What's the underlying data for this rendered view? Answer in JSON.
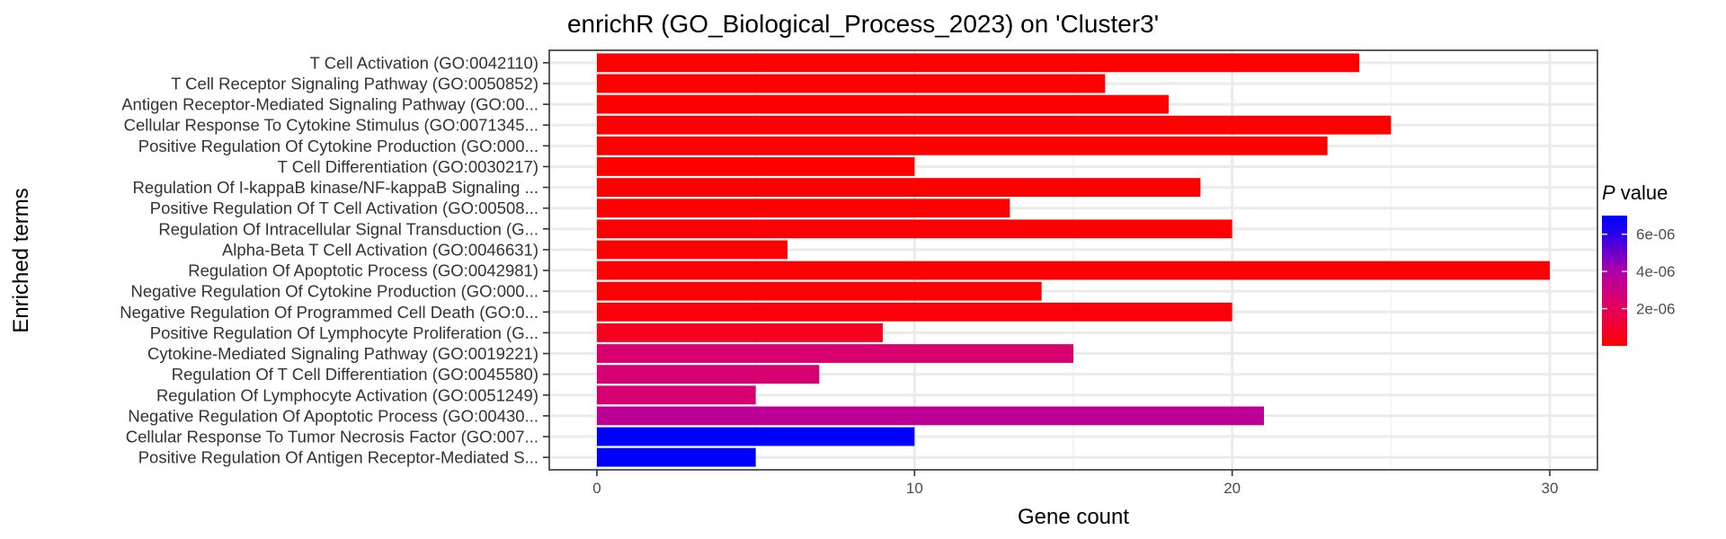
{
  "chart_data": {
    "type": "bar",
    "orientation": "horizontal",
    "title": "enrichR (GO_Biological_Process_2023) on 'Cluster3'",
    "xlabel": "Gene count",
    "ylabel": "Enriched terms",
    "xlim": [
      -1.5,
      31.5
    ],
    "xticks": [
      0,
      10,
      20,
      30
    ],
    "grid": true,
    "categories": [
      "T Cell Activation (GO:0042110)",
      "T Cell Receptor Signaling Pathway (GO:0050852)",
      "Antigen Receptor-Mediated Signaling Pathway (GO:00...",
      "Cellular Response To Cytokine Stimulus (GO:0071345...",
      "Positive Regulation Of Cytokine Production (GO:000...",
      "T Cell Differentiation (GO:0030217)",
      "Regulation Of I-kappaB kinase/NF-kappaB Signaling ...",
      "Positive Regulation Of T Cell Activation (GO:00508...",
      "Regulation Of Intracellular Signal Transduction (G...",
      "Alpha-Beta T Cell Activation (GO:0046631)",
      "Regulation Of Apoptotic Process (GO:0042981)",
      "Negative Regulation Of Cytokine Production (GO:000...",
      "Negative Regulation Of Programmed Cell Death (GO:0...",
      "Positive Regulation Of Lymphocyte Proliferation (G...",
      "Cytokine-Mediated Signaling Pathway (GO:0019221)",
      "Regulation Of T Cell Differentiation (GO:0045580)",
      "Regulation Of Lymphocyte Activation (GO:0051249)",
      "Negative Regulation Of Apoptotic Process (GO:00430...",
      "Cellular Response To Tumor Necrosis Factor (GO:007...",
      "Positive Regulation Of Antigen Receptor-Mediated S..."
    ],
    "values": [
      24,
      16,
      18,
      25,
      23,
      10,
      19,
      13,
      20,
      6,
      30,
      14,
      20,
      9,
      15,
      7,
      5,
      21,
      10,
      5
    ],
    "p_values": [
      1e-09,
      1e-09,
      1e-09,
      1e-09,
      1e-09,
      1e-09,
      1e-09,
      1e-09,
      5e-08,
      5e-08,
      1e-07,
      1e-07,
      2e-07,
      7e-07,
      2.5e-06,
      2.6e-06,
      2.6e-06,
      3.5e-06,
      7e-06,
      7e-06
    ],
    "colorbar": {
      "title_italic": "P",
      "title_rest": " value",
      "low_color": "#ff0000",
      "high_color": "#0000ff",
      "range": [
        0,
        7e-06
      ],
      "ticks": [
        2e-06,
        4e-06,
        6e-06
      ],
      "tick_labels": [
        "2e-06",
        "4e-06",
        "6e-06"
      ]
    }
  }
}
